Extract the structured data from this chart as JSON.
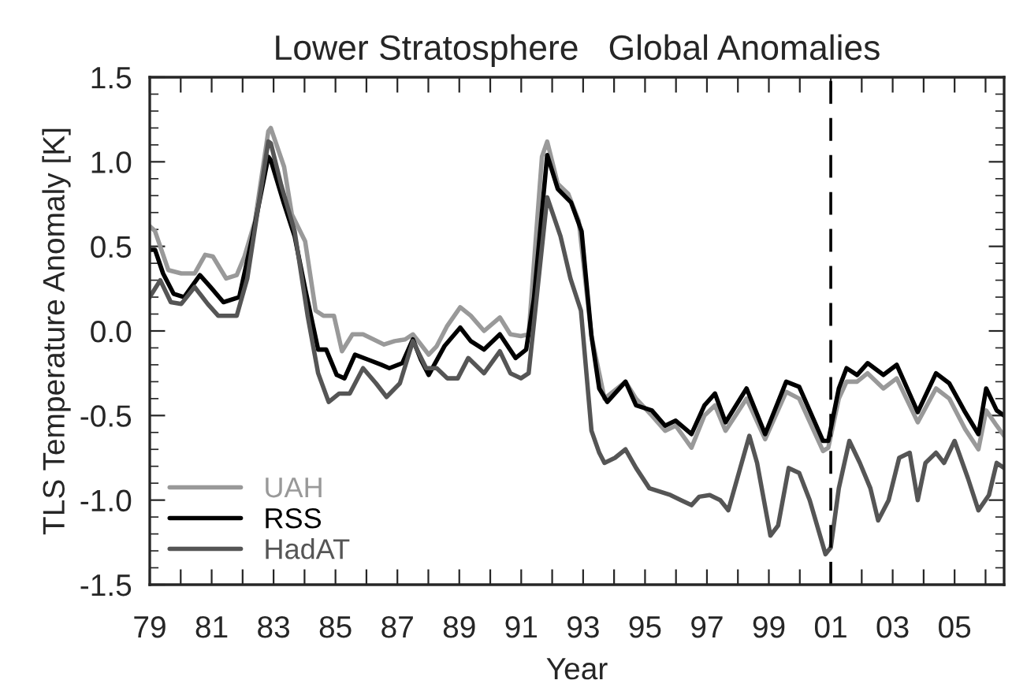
{
  "chart_data": {
    "type": "line",
    "title": "Lower Stratosphere   Global Anomalies",
    "xlabel": "Year",
    "ylabel": "TLS Temperature Anomaly [K]",
    "series": [
      {
        "name": "UAH",
        "color": "#999999",
        "x": [
          1979.0,
          1979.17,
          1979.6,
          1980.02,
          1980.45,
          1980.79,
          1981.04,
          1981.47,
          1981.81,
          1982.06,
          1982.4,
          1982.83,
          1982.91,
          1983.34,
          1983.59,
          1984.02,
          1984.36,
          1984.61,
          1984.95,
          1985.21,
          1985.55,
          1985.89,
          1986.23,
          1986.57,
          1986.91,
          1987.25,
          1987.5,
          1987.76,
          1988.01,
          1988.27,
          1988.61,
          1989.03,
          1989.37,
          1989.8,
          1990.31,
          1990.65,
          1990.99,
          1991.24,
          1991.67,
          1991.84,
          1992.18,
          1992.52,
          1992.86,
          1993.27,
          1993.69,
          1994.37,
          1994.71,
          1995.22,
          1995.65,
          1995.99,
          1996.5,
          1996.92,
          1997.26,
          1997.6,
          1998.28,
          1998.88,
          1999.56,
          1999.98,
          2000.75,
          2000.92,
          2001.26,
          2001.51,
          2001.85,
          2002.19,
          2002.7,
          2003.13,
          2003.81,
          2004.4,
          2004.83,
          2005.34,
          2005.77,
          2006.02,
          2006.36,
          2006.6
        ],
        "values": [
          0.62,
          0.59,
          0.36,
          0.34,
          0.34,
          0.45,
          0.44,
          0.31,
          0.33,
          0.44,
          0.65,
          1.18,
          1.2,
          0.97,
          0.69,
          0.53,
          0.12,
          0.09,
          0.09,
          -0.12,
          -0.02,
          -0.02,
          -0.05,
          -0.08,
          -0.06,
          -0.05,
          -0.02,
          -0.08,
          -0.14,
          -0.09,
          0.03,
          0.14,
          0.09,
          0.0,
          0.08,
          -0.02,
          -0.03,
          -0.02,
          1.03,
          1.12,
          0.87,
          0.81,
          0.65,
          -0.03,
          -0.4,
          -0.3,
          -0.4,
          -0.5,
          -0.59,
          -0.56,
          -0.69,
          -0.5,
          -0.44,
          -0.59,
          -0.4,
          -0.64,
          -0.36,
          -0.4,
          -0.71,
          -0.69,
          -0.4,
          -0.3,
          -0.3,
          -0.25,
          -0.34,
          -0.28,
          -0.54,
          -0.34,
          -0.4,
          -0.58,
          -0.7,
          -0.47,
          -0.56,
          -0.62
        ]
      },
      {
        "name": "RSS",
        "color": "#000000",
        "x": [
          1979.0,
          1979.17,
          1979.43,
          1979.77,
          1980.11,
          1980.62,
          1980.96,
          1981.38,
          1981.89,
          1982.32,
          1982.83,
          1982.91,
          1983.34,
          1983.68,
          1984.02,
          1984.44,
          1984.7,
          1985.04,
          1985.29,
          1985.63,
          1986.06,
          1986.48,
          1986.74,
          1987.16,
          1987.5,
          1987.76,
          1988.01,
          1988.52,
          1989.03,
          1989.37,
          1989.8,
          1990.31,
          1990.82,
          1991.16,
          1991.41,
          1991.84,
          1992.18,
          1992.61,
          1992.95,
          1993.27,
          1993.52,
          1993.78,
          1994.37,
          1994.71,
          1995.22,
          1995.65,
          1995.99,
          1996.5,
          1996.92,
          1997.26,
          1997.6,
          1998.28,
          1998.88,
          1999.56,
          1999.98,
          2000.75,
          2000.92,
          2001.26,
          2001.51,
          2001.85,
          2002.19,
          2002.7,
          2003.13,
          2003.81,
          2004.4,
          2004.83,
          2005.34,
          2005.77,
          2006.02,
          2006.36,
          2006.6
        ],
        "values": [
          0.48,
          0.48,
          0.34,
          0.22,
          0.2,
          0.33,
          0.26,
          0.17,
          0.2,
          0.56,
          1.03,
          1.01,
          0.75,
          0.56,
          0.25,
          -0.11,
          -0.11,
          -0.26,
          -0.28,
          -0.14,
          -0.17,
          -0.2,
          -0.22,
          -0.19,
          -0.05,
          -0.17,
          -0.26,
          -0.09,
          0.02,
          -0.06,
          -0.11,
          -0.02,
          -0.16,
          -0.11,
          0.19,
          1.04,
          0.84,
          0.76,
          0.59,
          -0.03,
          -0.34,
          -0.42,
          -0.3,
          -0.44,
          -0.47,
          -0.56,
          -0.53,
          -0.61,
          -0.44,
          -0.37,
          -0.54,
          -0.34,
          -0.61,
          -0.3,
          -0.33,
          -0.65,
          -0.65,
          -0.34,
          -0.22,
          -0.26,
          -0.19,
          -0.26,
          -0.2,
          -0.48,
          -0.25,
          -0.31,
          -0.48,
          -0.61,
          -0.34,
          -0.47,
          -0.5
        ]
      },
      {
        "name": "HadAT",
        "color": "#555555",
        "x": [
          1979.0,
          1979.34,
          1979.68,
          1980.02,
          1980.45,
          1980.87,
          1981.21,
          1981.81,
          1982.15,
          1982.83,
          1982.91,
          1983.25,
          1983.68,
          1984.1,
          1984.44,
          1984.78,
          1985.12,
          1985.46,
          1985.89,
          1986.31,
          1986.65,
          1987.08,
          1987.5,
          1987.93,
          1988.27,
          1988.61,
          1988.95,
          1989.29,
          1989.8,
          1990.31,
          1990.65,
          1990.99,
          1991.24,
          1991.84,
          1992.27,
          1992.59,
          1992.93,
          1993.27,
          1993.52,
          1993.69,
          1994.03,
          1994.37,
          1994.71,
          1995.14,
          1995.48,
          1995.82,
          1996.16,
          1996.5,
          1996.75,
          1997.09,
          1997.43,
          1997.69,
          1998.03,
          1998.37,
          1998.62,
          1999.05,
          1999.3,
          1999.64,
          1999.98,
          2000.32,
          2000.83,
          2001.0,
          2001.26,
          2001.6,
          2001.94,
          2002.28,
          2002.53,
          2002.87,
          2003.21,
          2003.55,
          2003.81,
          2004.06,
          2004.4,
          2004.66,
          2005.0,
          2005.43,
          2005.77,
          2006.11,
          2006.36,
          2006.6
        ],
        "values": [
          0.2,
          0.3,
          0.17,
          0.16,
          0.26,
          0.16,
          0.09,
          0.09,
          0.31,
          1.12,
          1.11,
          0.86,
          0.59,
          0.09,
          -0.25,
          -0.42,
          -0.37,
          -0.37,
          -0.22,
          -0.31,
          -0.39,
          -0.31,
          -0.06,
          -0.22,
          -0.22,
          -0.28,
          -0.28,
          -0.16,
          -0.25,
          -0.12,
          -0.25,
          -0.28,
          -0.25,
          0.79,
          0.56,
          0.31,
          0.12,
          -0.59,
          -0.72,
          -0.78,
          -0.75,
          -0.7,
          -0.81,
          -0.93,
          -0.95,
          -0.97,
          -1.0,
          -1.03,
          -0.98,
          -0.97,
          -1.0,
          -1.06,
          -0.84,
          -0.62,
          -0.78,
          -1.21,
          -1.15,
          -0.81,
          -0.84,
          -1.0,
          -1.32,
          -1.28,
          -0.93,
          -0.65,
          -0.78,
          -0.93,
          -1.12,
          -1.0,
          -0.75,
          -0.72,
          -1.0,
          -0.78,
          -0.72,
          -0.78,
          -0.65,
          -0.87,
          -1.06,
          -0.97,
          -0.78,
          -0.81
        ]
      }
    ],
    "xlim": [
      1979.0,
      2006.6
    ],
    "xticks": [
      {
        "value": 1979,
        "label": "79"
      },
      {
        "value": 1980,
        "label": null
      },
      {
        "value": 1981,
        "label": "81"
      },
      {
        "value": 1982,
        "label": null
      },
      {
        "value": 1983,
        "label": "83"
      },
      {
        "value": 1984,
        "label": null
      },
      {
        "value": 1985,
        "label": "85"
      },
      {
        "value": 1986,
        "label": null
      },
      {
        "value": 1987,
        "label": "87"
      },
      {
        "value": 1988,
        "label": null
      },
      {
        "value": 1989,
        "label": "89"
      },
      {
        "value": 1990,
        "label": null
      },
      {
        "value": 1991,
        "label": "91"
      },
      {
        "value": 1992,
        "label": null
      },
      {
        "value": 1993,
        "label": "93"
      },
      {
        "value": 1994,
        "label": null
      },
      {
        "value": 1995,
        "label": "95"
      },
      {
        "value": 1996,
        "label": null
      },
      {
        "value": 1997,
        "label": "97"
      },
      {
        "value": 1998,
        "label": null
      },
      {
        "value": 1999,
        "label": "99"
      },
      {
        "value": 2000,
        "label": null
      },
      {
        "value": 2001,
        "label": "01"
      },
      {
        "value": 2002,
        "label": null
      },
      {
        "value": 2003,
        "label": "03"
      },
      {
        "value": 2004,
        "label": null
      },
      {
        "value": 2005,
        "label": "05"
      },
      {
        "value": 2006,
        "label": null
      }
    ],
    "ylim": [
      -1.5,
      1.5
    ],
    "yticks": [
      -1.5,
      {
        "value": -1.4,
        "label": null
      },
      {
        "value": -1.3,
        "label": null
      },
      {
        "value": -1.2,
        "label": null
      },
      {
        "value": -1.1,
        "label": null
      },
      {
        "value": -1.0,
        "label": "-1.0"
      },
      {
        "value": -0.9,
        "label": null
      },
      {
        "value": -0.8,
        "label": null
      },
      {
        "value": -0.7,
        "label": null
      },
      {
        "value": -0.6,
        "label": null
      },
      -0.5,
      {
        "value": -0.4,
        "label": null
      },
      {
        "value": -0.3,
        "label": null
      },
      {
        "value": -0.2,
        "label": null
      },
      {
        "value": -0.1,
        "label": null
      },
      {
        "value": 0.0,
        "label": "0.0"
      },
      {
        "value": 0.1,
        "label": null
      },
      {
        "value": 0.2,
        "label": null
      },
      {
        "value": 0.3,
        "label": null
      },
      {
        "value": 0.4,
        "label": null
      },
      0.5,
      {
        "value": 0.6,
        "label": null
      },
      {
        "value": 0.7,
        "label": null
      },
      {
        "value": 0.8,
        "label": null
      },
      {
        "value": 0.9,
        "label": null
      },
      {
        "value": 1.0,
        "label": "1.0"
      },
      {
        "value": 1.1,
        "label": null
      },
      {
        "value": 1.2,
        "label": null
      },
      {
        "value": 1.3,
        "label": null
      },
      {
        "value": 1.4,
        "label": null
      },
      1.5
    ],
    "ref_lines": [
      {
        "axis": "x",
        "value": 2001,
        "color": "#000000",
        "line_style": "dashed"
      }
    ],
    "legend": "bottom left",
    "grid": false,
    "marker": "none",
    "line_style": "solid"
  }
}
